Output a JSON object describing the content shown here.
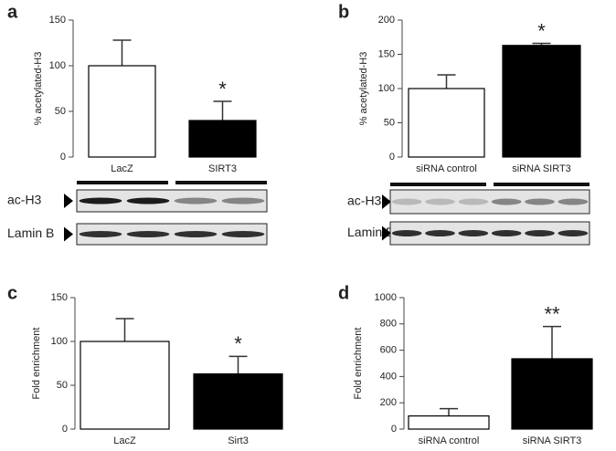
{
  "chart_data": [
    {
      "type": "bar",
      "panel": "a",
      "y_label": "% acetylated-H3",
      "categories": [
        "LacZ",
        "SIRT3"
      ],
      "values": [
        100,
        40
      ],
      "errors": [
        28,
        21
      ],
      "colors": [
        "#ffffff",
        "#000000"
      ],
      "ylim": [
        0,
        150
      ],
      "yticks": [
        0,
        50,
        100,
        150
      ],
      "annotations": [
        {
          "index": 1,
          "text": "*"
        }
      ],
      "blot_labels": [
        "ac-H3",
        "Lamin B"
      ]
    },
    {
      "type": "bar",
      "panel": "b",
      "y_label": "% acetylated-H3",
      "categories": [
        "siRNA control",
        "siRNA SIRT3"
      ],
      "values": [
        100,
        163
      ],
      "errors": [
        20,
        3
      ],
      "colors": [
        "#ffffff",
        "#000000"
      ],
      "ylim": [
        0,
        200
      ],
      "yticks": [
        0,
        50,
        100,
        150,
        200
      ],
      "annotations": [
        {
          "index": 1,
          "text": "*"
        }
      ],
      "blot_labels": [
        "ac-H3",
        "Lamin B"
      ]
    },
    {
      "type": "bar",
      "panel": "c",
      "y_label": "Fold enrichment",
      "categories": [
        "LacZ",
        "Sirt3"
      ],
      "values": [
        100,
        63
      ],
      "errors": [
        26,
        20
      ],
      "colors": [
        "#ffffff",
        "#000000"
      ],
      "ylim": [
        0,
        150
      ],
      "yticks": [
        0,
        50,
        100,
        150
      ],
      "annotations": [
        {
          "index": 1,
          "text": "*"
        }
      ]
    },
    {
      "type": "bar",
      "panel": "d",
      "y_label": "Fold enrichment",
      "categories": [
        "siRNA control",
        "siRNA SIRT3"
      ],
      "values": [
        100,
        535
      ],
      "errors": [
        55,
        245
      ],
      "colors": [
        "#ffffff",
        "#000000"
      ],
      "ylim": [
        0,
        1000
      ],
      "yticks": [
        0,
        200,
        400,
        600,
        800,
        1000
      ],
      "annotations": [
        {
          "index": 1,
          "text": "**"
        }
      ]
    }
  ]
}
